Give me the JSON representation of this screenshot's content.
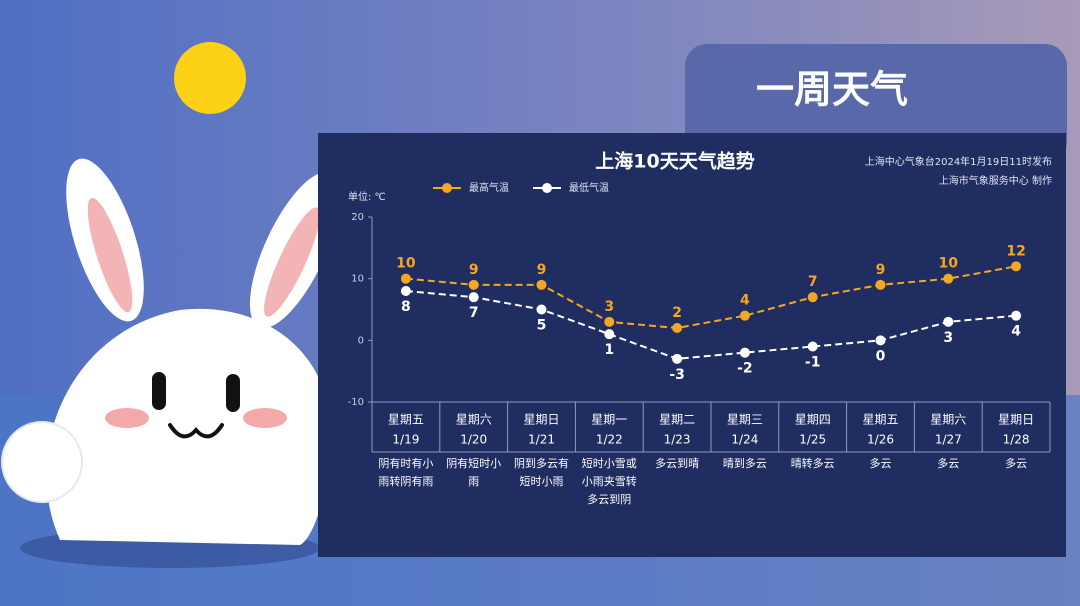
{
  "poster_title": "一周天气",
  "chart_data": {
    "type": "line",
    "title": "上海10天天气趋势",
    "source": "上海中心气象台2024年1月19日11时发布",
    "credit": "上海市气象服务中心 制作",
    "unit_label": "单位: ℃",
    "categories": [
      "1/19",
      "1/20",
      "1/21",
      "1/22",
      "1/23",
      "1/24",
      "1/25",
      "1/26",
      "1/27",
      "1/28"
    ],
    "weekdays": [
      "星期五",
      "星期六",
      "星期日",
      "星期一",
      "星期二",
      "星期三",
      "星期四",
      "星期五",
      "星期六",
      "星期日"
    ],
    "weather": [
      "阴有时有小雨转阴有雨",
      "阴有短时小雨",
      "阴到多云有短时小雨",
      "短时小雪或小雨夹雪转多云到阴",
      "多云到晴",
      "晴到多云",
      "晴转多云",
      "多云",
      "多云",
      "多云"
    ],
    "series": [
      {
        "name": "最高气温",
        "color": "#f5a623",
        "values": [
          10,
          9,
          9,
          3,
          2,
          4,
          7,
          9,
          10,
          12
        ]
      },
      {
        "name": "最低气温",
        "color": "#ffffff",
        "values": [
          8,
          7,
          5,
          1,
          -3,
          -2,
          -1,
          0,
          3,
          4
        ]
      }
    ],
    "ylim": [
      -10,
      20
    ],
    "yticks": [
      -10,
      0,
      10,
      20
    ]
  }
}
